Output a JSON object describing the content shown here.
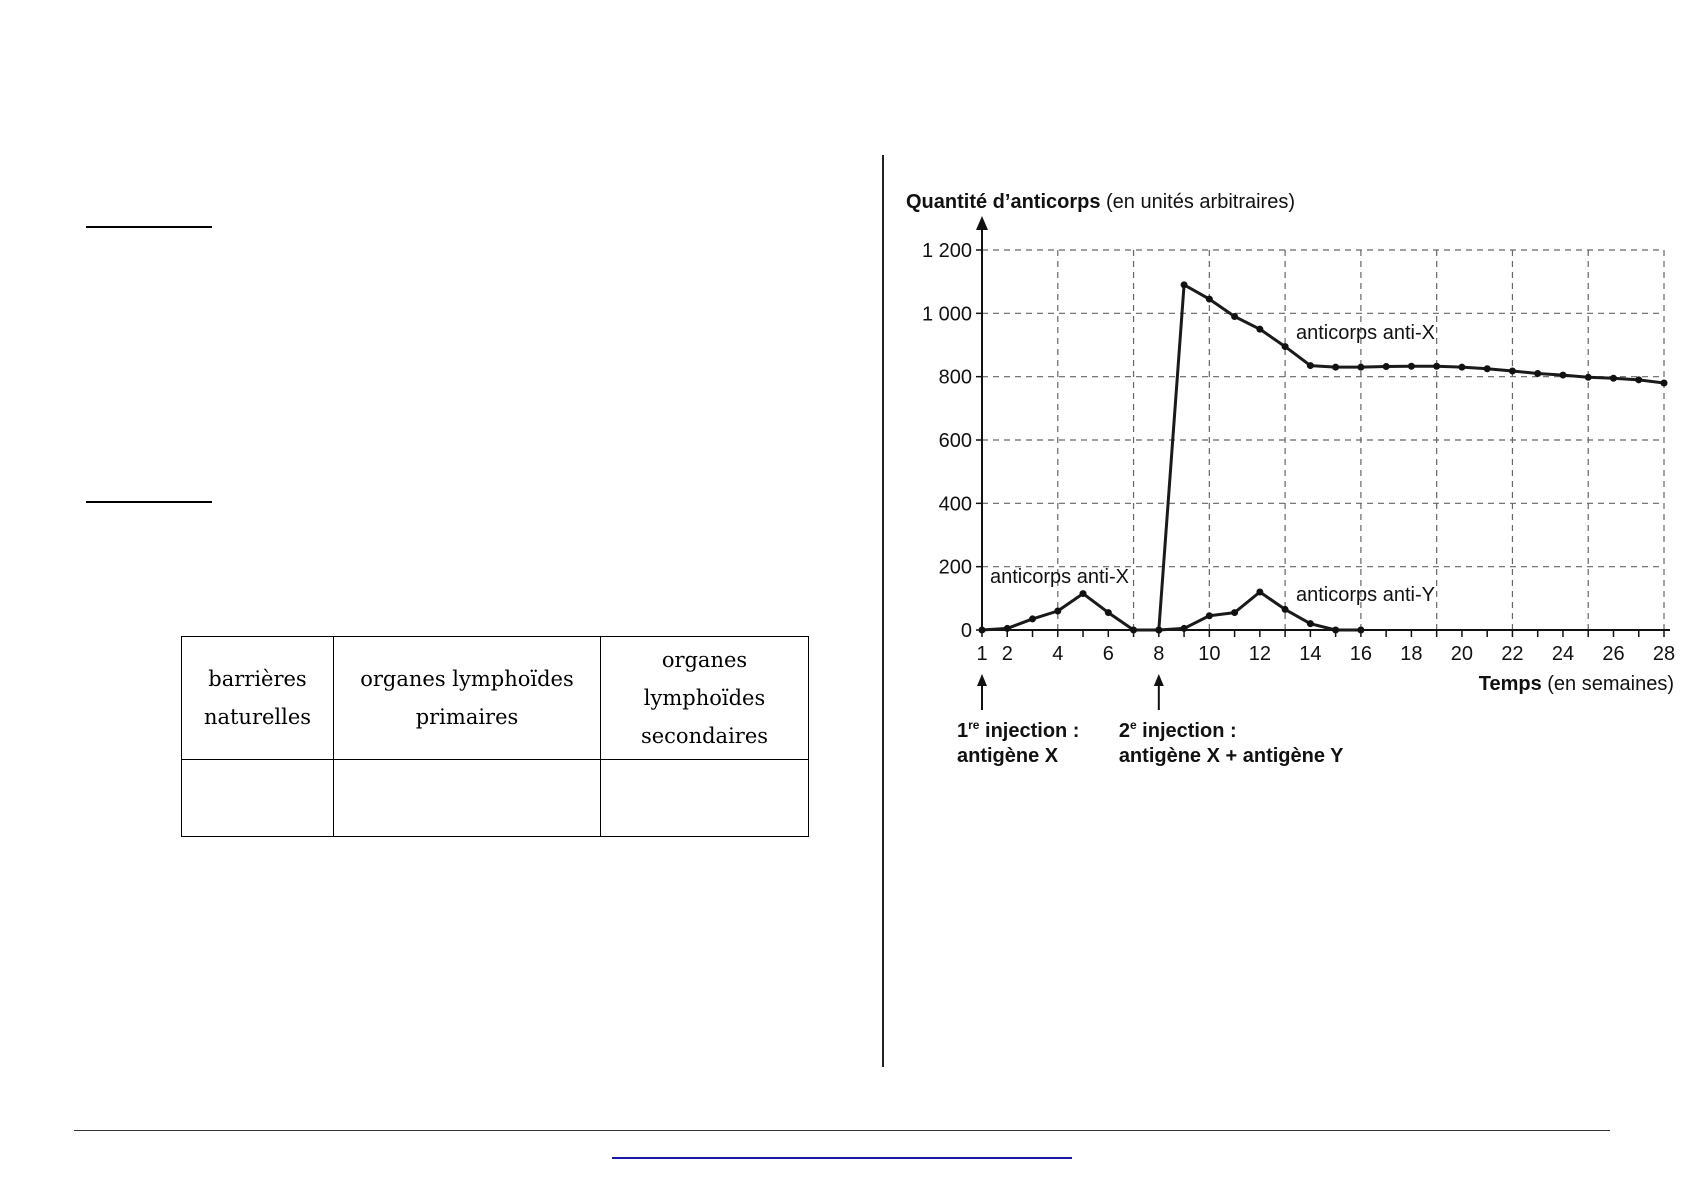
{
  "table": {
    "headers": [
      {
        "line1": "barrières",
        "line2": "naturelles"
      },
      {
        "line1": "organes lymphoïdes",
        "line2": "primaires"
      },
      {
        "line1": "organes lymphoïdes",
        "line2": "secondaires"
      }
    ]
  },
  "chart_data": {
    "type": "line",
    "ylabel_bold": "Quantité d’anticorps",
    "ylabel_rest": " (en unités arbitraires)",
    "xlabel_bold": "Temps",
    "xlabel_rest": " (en semaines)",
    "xlim": [
      1,
      28
    ],
    "ylim": [
      0,
      1200
    ],
    "x_ticks": [
      1,
      2,
      4,
      6,
      8,
      10,
      12,
      14,
      16,
      18,
      20,
      22,
      24,
      26,
      28
    ],
    "y_ticks": [
      {
        "value": 0,
        "label": "0"
      },
      {
        "value": 200,
        "label": "200"
      },
      {
        "value": 400,
        "label": "400"
      },
      {
        "value": 600,
        "label": "600"
      },
      {
        "value": 800,
        "label": "800"
      },
      {
        "value": 1000,
        "label": "1 000"
      },
      {
        "value": 1200,
        "label": "1 200"
      }
    ],
    "grid": true,
    "series": [
      {
        "name": "anticorps anti-X",
        "x": [
          1,
          2,
          3,
          4,
          5,
          6,
          7,
          8,
          9,
          10,
          11,
          12,
          13,
          14,
          15,
          16,
          17,
          18,
          19,
          20,
          21,
          22,
          23,
          24,
          25,
          26,
          27,
          28
        ],
        "y": [
          0,
          5,
          35,
          60,
          115,
          55,
          0,
          0,
          1090,
          1045,
          990,
          950,
          895,
          835,
          830,
          830,
          832,
          833,
          833,
          830,
          825,
          818,
          810,
          805,
          798,
          795,
          790,
          780
        ]
      },
      {
        "name": "anticorps anti-Y",
        "x": [
          8,
          9,
          10,
          11,
          12,
          13,
          14,
          15,
          16
        ],
        "y": [
          0,
          5,
          45,
          55,
          120,
          65,
          20,
          0,
          0
        ]
      }
    ],
    "annotations": [
      {
        "sup_base": "1",
        "sup": "re",
        "text": " injection :",
        "line2": "antigène X",
        "x": 1
      },
      {
        "sup_base": "2",
        "sup": "e",
        "text": " injection :",
        "line2": "antigène X + antigène Y",
        "x": 8
      }
    ]
  }
}
